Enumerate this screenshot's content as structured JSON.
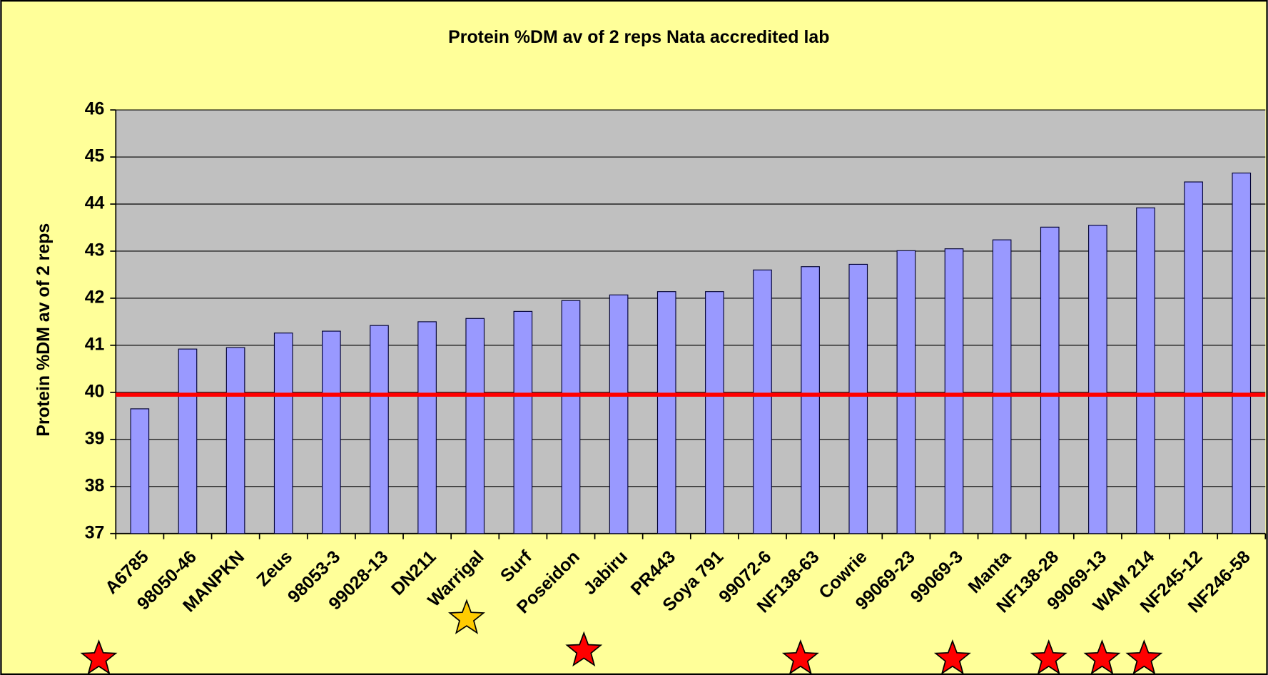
{
  "chart_data": {
    "type": "bar",
    "title": "Protein %DM av of 2 reps Nata accredited lab",
    "y_label": "Protein %DM av of 2 reps",
    "categories": [
      "A6785",
      "98050-46",
      "MANPKN",
      "Zeus",
      "98053-3",
      "99028-13",
      "DN211",
      "Warrigal",
      "Surf",
      "Poseidon",
      "Jabiru",
      "PR443",
      "Soya 791",
      "99072-6",
      "NF138-63",
      "Cowrie",
      "99069-23",
      "99069-3",
      "Manta",
      "NF138-28",
      "99069-13",
      "WAM 214",
      "NF245-12",
      "NF246-58"
    ],
    "values": [
      39.65,
      40.92,
      40.95,
      41.26,
      41.3,
      41.42,
      41.5,
      41.57,
      41.72,
      41.95,
      42.07,
      42.14,
      42.14,
      42.6,
      42.67,
      42.72,
      43.01,
      43.05,
      43.24,
      43.51,
      43.55,
      43.92,
      44.47,
      44.66
    ],
    "color": "#9999ff",
    "reference_line": 39.95,
    "reference_color": "#ff0000",
    "ylim": [
      37,
      46
    ],
    "yticks": [
      37,
      38,
      39,
      40,
      41,
      42,
      43,
      44,
      45,
      46
    ],
    "grid": true
  }
}
